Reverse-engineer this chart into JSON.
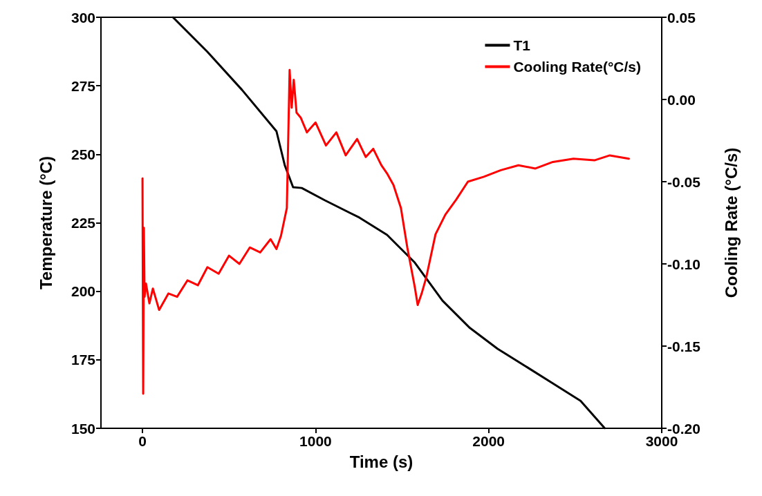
{
  "chart_data": {
    "type": "line",
    "xlabel": "Time (s)",
    "ylabel": "Temperature (°C)",
    "y2label": "Cooling Rate (°C/s)",
    "xlim": [
      -240,
      3000
    ],
    "xticks": [
      0,
      1000,
      2000,
      3000
    ],
    "ylim": [
      150,
      300
    ],
    "yticks": [
      150,
      175,
      200,
      225,
      250,
      275,
      300
    ],
    "y2lim": [
      -0.2,
      0.05
    ],
    "y2ticks": [
      {
        "value": -0.2,
        "label": "-0.20"
      },
      {
        "value": -0.15,
        "label": "-0.15"
      },
      {
        "value": -0.1,
        "label": "-0.10"
      },
      {
        "value": -0.05,
        "label": "-0.05"
      },
      {
        "value": 0,
        "label": "0.00"
      },
      {
        "value": 0.05,
        "label": "0.05"
      }
    ],
    "grid": false,
    "legend": "top right",
    "marker": "none",
    "line_style": "solid",
    "series": [
      {
        "name": "T1",
        "color": "#000000",
        "x": [
          176,
          375,
          575,
          774,
          822,
          870,
          920,
          1054,
          1253,
          1413,
          1573,
          1733,
          1892,
          2052,
          2212,
          2371,
          2531,
          2671
        ],
        "values": [
          300,
          287.4,
          273.5,
          258.4,
          246,
          238,
          237.7,
          233.2,
          226.9,
          220.6,
          210.5,
          196.6,
          186.6,
          179,
          172.7,
          166.4,
          160,
          150
        ]
      },
      {
        "name": "Cooling Rate(°C/s)",
        "color": "#ff0000",
        "axis": "y2",
        "x": [
          0,
          4,
          8,
          12,
          20,
          40,
          60,
          96,
          150,
          200,
          260,
          320,
          375,
          440,
          500,
          560,
          620,
          680,
          740,
          774,
          800,
          834,
          850,
          862,
          874,
          890,
          914,
          950,
          1000,
          1060,
          1120,
          1174,
          1240,
          1290,
          1333,
          1380,
          1413,
          1450,
          1493,
          1530,
          1573,
          1590,
          1613,
          1640,
          1693,
          1750,
          1812,
          1880,
          1972,
          2070,
          2172,
          2270,
          2371,
          2490,
          2611,
          2700,
          2810
        ],
        "values": [
          -0.048,
          -0.179,
          -0.078,
          -0.12,
          -0.112,
          -0.124,
          -0.115,
          -0.128,
          -0.118,
          -0.12,
          -0.11,
          -0.113,
          -0.102,
          -0.106,
          -0.095,
          -0.1,
          -0.09,
          -0.093,
          -0.085,
          -0.091,
          -0.083,
          -0.066,
          0.018,
          -0.005,
          0.012,
          -0.008,
          -0.011,
          -0.02,
          -0.014,
          -0.028,
          -0.02,
          -0.034,
          -0.024,
          -0.035,
          -0.03,
          -0.04,
          -0.045,
          -0.052,
          -0.066,
          -0.09,
          -0.114,
          -0.125,
          -0.118,
          -0.108,
          -0.082,
          -0.07,
          -0.061,
          -0.05,
          -0.047,
          -0.043,
          -0.04,
          -0.042,
          -0.038,
          -0.036,
          -0.037,
          -0.034,
          -0.036
        ]
      }
    ]
  }
}
